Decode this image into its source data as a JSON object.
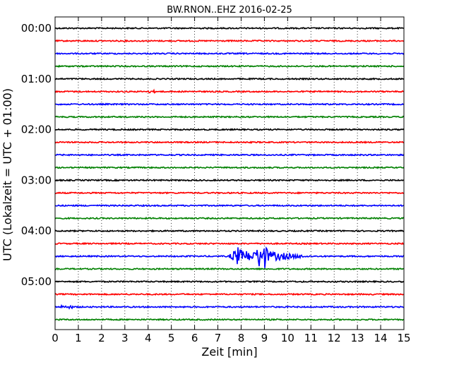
{
  "chart_data": {
    "type": "line",
    "title": "BW.RNON..EHZ 2016-02-25",
    "xlabel": "Zeit  [min]",
    "ylabel": "UTC (Lokalzeit = UTC + 01:00)",
    "xlim": [
      0,
      15
    ],
    "x_ticks": [
      "0",
      "1",
      "2",
      "3",
      "4",
      "5",
      "6",
      "7",
      "8",
      "9",
      "10",
      "11",
      "12",
      "13",
      "14",
      "15"
    ],
    "y_ticks": [
      "00:00",
      "01:00",
      "02:00",
      "03:00",
      "04:00",
      "05:00"
    ],
    "grid_x": true,
    "trace_interval_min": 15,
    "trace_count": 24,
    "trace_colors": [
      "#000000",
      "#ff0000",
      "#0000ff",
      "#008000"
    ],
    "event": {
      "trace_start": "04:30",
      "onset_min": 7.6,
      "peak_min": 9.0,
      "end_min": 11.0,
      "color": "#0000ff"
    }
  }
}
